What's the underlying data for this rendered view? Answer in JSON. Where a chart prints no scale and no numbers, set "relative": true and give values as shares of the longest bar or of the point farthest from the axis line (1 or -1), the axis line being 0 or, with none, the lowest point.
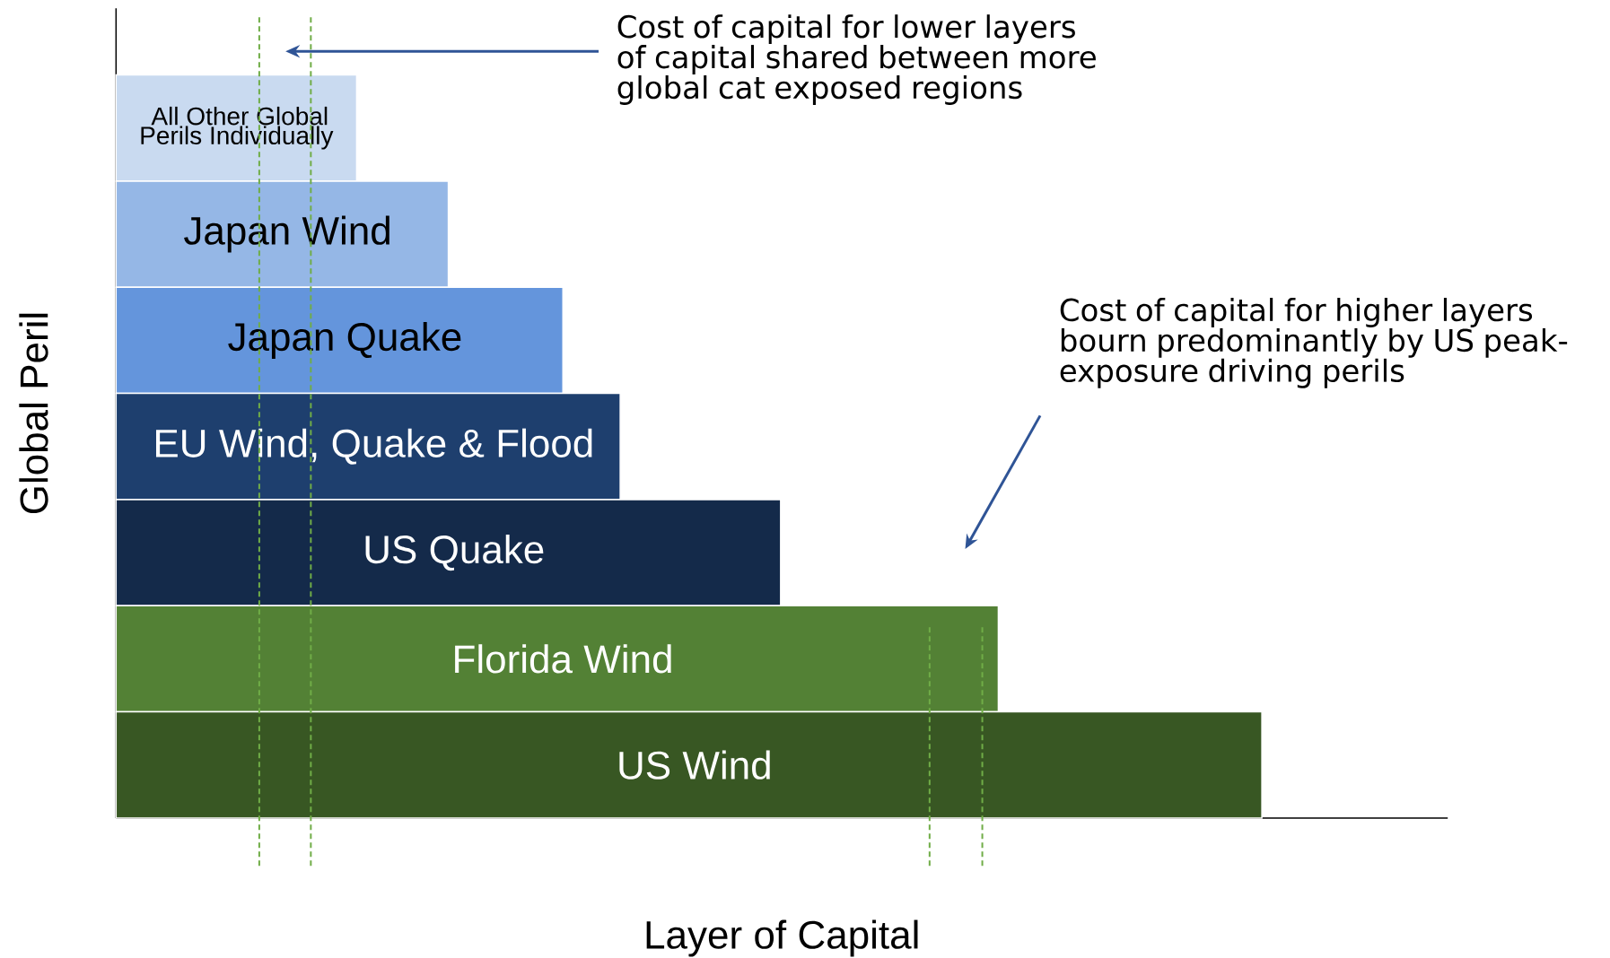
{
  "chart_data": {
    "type": "bar",
    "orientation": "horizontal",
    "relative": true,
    "xlabel": "Layer of Capital",
    "ylabel": "Global Peril",
    "categories": [
      "All Other Global Perils Individually",
      "Japan Wind",
      "Japan Quake",
      "EU Wind, Quake & Flood",
      "US Quake",
      "Florida Wind",
      "US Wind"
    ],
    "values": [
      0.21,
      0.29,
      0.39,
      0.44,
      0.58,
      0.77,
      1.0
    ],
    "colors": [
      "#c9daf0",
      "#95b7e6",
      "#6495dc",
      "#1e3f6e",
      "#142a4a",
      "#538135",
      "#385723"
    ],
    "ref_lines": [
      {
        "axis": "x",
        "value": 0.125,
        "color": "#70ad47",
        "line_style": "dashed"
      },
      {
        "axis": "x",
        "value": 0.17,
        "color": "#70ad47",
        "line_style": "dashed"
      },
      {
        "axis": "x",
        "value": 0.71,
        "color": "#70ad47",
        "line_style": "dashed"
      },
      {
        "axis": "x",
        "value": 0.756,
        "color": "#70ad47",
        "line_style": "dashed"
      }
    ],
    "annotations": [
      "Cost of capital for lower layers of capital shared between more global cat exposed regions",
      "Cost of capital for higher layers bourn predominantly by US peak-exposure driving perils"
    ]
  }
}
